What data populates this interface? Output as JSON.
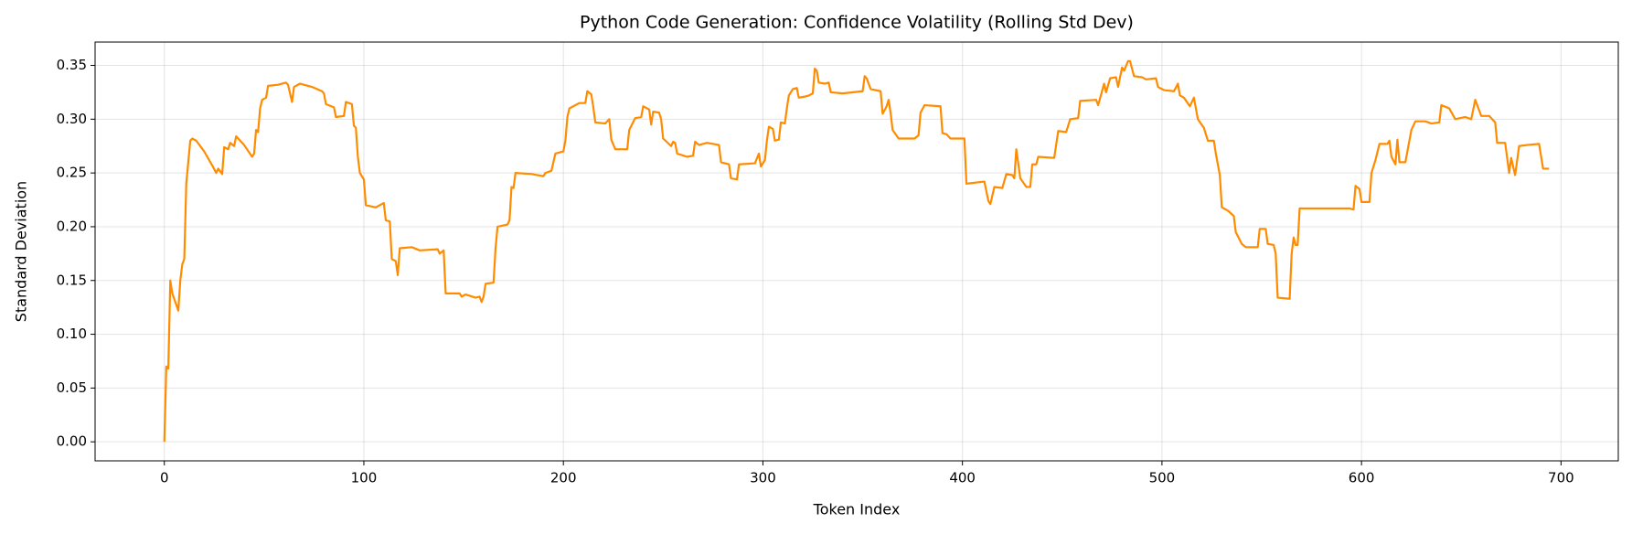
{
  "chart_data": {
    "type": "line",
    "title": "Python Code Generation: Confidence Volatility (Rolling Std Dev)",
    "x_label": "Token Index",
    "y_label": "Standard Deviation",
    "color": "#ff8c00",
    "grid": true,
    "xlim": [
      -34.7,
      728.7
    ],
    "ylim": [
      -0.0177,
      0.3717
    ],
    "xticks": [
      0,
      100,
      200,
      300,
      400,
      500,
      600,
      700
    ],
    "yticks": [
      {
        "value": 0,
        "label": "0.00"
      },
      0.05,
      {
        "value": 0.1,
        "label": "0.10"
      },
      0.15,
      {
        "value": 0.2,
        "label": "0.20"
      },
      0.25,
      {
        "value": 0.3,
        "label": "0.30"
      },
      0.35
    ],
    "x": [
      0,
      1,
      2,
      3,
      4,
      7,
      8,
      9,
      10,
      11,
      12,
      13,
      14,
      16,
      20,
      24,
      26,
      27,
      29,
      30,
      32,
      33,
      35,
      36,
      40,
      44,
      45,
      46,
      47,
      48,
      49,
      51,
      52,
      57,
      61,
      62,
      64,
      65,
      68,
      74,
      79,
      80,
      81,
      85,
      86,
      90,
      91,
      94,
      95,
      96,
      97,
      98,
      100,
      101,
      106,
      110,
      111,
      113,
      114,
      116,
      117,
      118,
      124,
      128,
      137,
      138,
      140,
      141,
      148,
      149,
      151,
      156,
      158,
      159,
      160,
      161,
      165,
      166,
      167,
      172,
      173,
      174,
      175,
      176,
      184,
      190,
      191,
      194,
      196,
      200,
      201,
      202,
      203,
      208,
      211,
      212,
      214,
      215,
      216,
      221,
      223,
      224,
      226,
      232,
      233,
      236,
      239,
      240,
      243,
      244,
      245,
      248,
      249,
      250,
      254,
      255,
      256,
      257,
      262,
      265,
      266,
      268,
      272,
      278,
      279,
      283,
      284,
      287,
      288,
      296,
      298,
      299,
      301,
      302,
      303,
      305,
      306,
      308,
      309,
      311,
      312,
      313,
      315,
      317,
      318,
      321,
      323,
      325,
      326,
      327,
      328,
      331,
      333,
      334,
      340,
      350,
      351,
      352,
      354,
      359,
      360,
      362,
      363,
      364,
      365,
      368,
      376,
      378,
      379,
      381,
      389,
      390,
      392,
      394,
      401,
      402,
      411,
      413,
      414,
      416,
      420,
      422,
      425,
      426,
      427,
      429,
      432,
      434,
      435,
      437,
      438,
      446,
      448,
      452,
      454,
      458,
      459,
      467,
      468,
      471,
      472,
      474,
      477,
      478,
      480,
      481,
      483,
      484,
      486,
      490,
      492,
      497,
      498,
      501,
      506,
      508,
      509,
      511,
      514,
      516,
      518,
      521,
      523,
      526,
      527,
      529,
      530,
      533,
      536,
      537,
      540,
      542,
      548,
      549,
      552,
      553,
      556,
      557,
      558,
      564,
      565,
      566,
      567,
      568,
      569,
      594,
      596,
      597,
      599,
      600,
      604,
      605,
      607,
      609,
      613,
      614,
      615,
      617,
      618,
      619,
      622,
      625,
      627,
      632,
      635,
      639,
      640,
      644,
      647,
      652,
      655,
      657,
      660,
      664,
      667,
      668,
      672,
      674,
      675,
      677,
      679,
      683,
      689,
      691,
      694
    ],
    "values": [
      0,
      0.07,
      0.068,
      0.15,
      0.138,
      0.122,
      0.15,
      0.165,
      0.17,
      0.24,
      0.26,
      0.28,
      0.282,
      0.28,
      0.27,
      0.257,
      0.25,
      0.254,
      0.249,
      0.274,
      0.272,
      0.278,
      0.275,
      0.284,
      0.276,
      0.265,
      0.268,
      0.29,
      0.288,
      0.31,
      0.318,
      0.32,
      0.331,
      0.332,
      0.334,
      0.332,
      0.316,
      0.33,
      0.333,
      0.33,
      0.326,
      0.324,
      0.314,
      0.311,
      0.302,
      0.303,
      0.316,
      0.314,
      0.294,
      0.292,
      0.265,
      0.25,
      0.244,
      0.22,
      0.218,
      0.222,
      0.206,
      0.205,
      0.17,
      0.168,
      0.155,
      0.18,
      0.181,
      0.178,
      0.179,
      0.175,
      0.178,
      0.138,
      0.138,
      0.135,
      0.137,
      0.134,
      0.135,
      0.13,
      0.135,
      0.147,
      0.148,
      0.18,
      0.2,
      0.202,
      0.206,
      0.237,
      0.236,
      0.25,
      0.249,
      0.247,
      0.25,
      0.252,
      0.268,
      0.27,
      0.28,
      0.302,
      0.31,
      0.315,
      0.315,
      0.326,
      0.323,
      0.311,
      0.297,
      0.296,
      0.3,
      0.281,
      0.272,
      0.272,
      0.29,
      0.301,
      0.302,
      0.312,
      0.309,
      0.295,
      0.307,
      0.306,
      0.3,
      0.282,
      0.275,
      0.279,
      0.278,
      0.268,
      0.265,
      0.266,
      0.279,
      0.276,
      0.278,
      0.276,
      0.26,
      0.258,
      0.245,
      0.244,
      0.258,
      0.259,
      0.268,
      0.256,
      0.262,
      0.28,
      0.293,
      0.291,
      0.28,
      0.281,
      0.297,
      0.296,
      0.31,
      0.322,
      0.328,
      0.329,
      0.32,
      0.321,
      0.322,
      0.324,
      0.347,
      0.345,
      0.334,
      0.333,
      0.334,
      0.325,
      0.324,
      0.326,
      0.34,
      0.338,
      0.328,
      0.326,
      0.305,
      0.312,
      0.318,
      0.306,
      0.29,
      0.282,
      0.282,
      0.285,
      0.306,
      0.313,
      0.312,
      0.287,
      0.286,
      0.282,
      0.282,
      0.24,
      0.242,
      0.224,
      0.221,
      0.237,
      0.236,
      0.249,
      0.248,
      0.245,
      0.272,
      0.245,
      0.237,
      0.237,
      0.258,
      0.258,
      0.265,
      0.264,
      0.289,
      0.288,
      0.3,
      0.301,
      0.317,
      0.318,
      0.313,
      0.333,
      0.325,
      0.338,
      0.339,
      0.33,
      0.348,
      0.345,
      0.354,
      0.354,
      0.34,
      0.339,
      0.337,
      0.338,
      0.33,
      0.327,
      0.326,
      0.333,
      0.322,
      0.32,
      0.312,
      0.32,
      0.3,
      0.292,
      0.28,
      0.28,
      0.268,
      0.248,
      0.218,
      0.215,
      0.21,
      0.195,
      0.184,
      0.181,
      0.181,
      0.198,
      0.198,
      0.184,
      0.183,
      0.175,
      0.134,
      0.133,
      0.175,
      0.19,
      0.183,
      0.183,
      0.217,
      0.217,
      0.216,
      0.238,
      0.235,
      0.223,
      0.223,
      0.25,
      0.262,
      0.277,
      0.277,
      0.28,
      0.265,
      0.258,
      0.281,
      0.26,
      0.26,
      0.29,
      0.298,
      0.298,
      0.296,
      0.297,
      0.313,
      0.31,
      0.3,
      0.302,
      0.3,
      0.318,
      0.303,
      0.303,
      0.297,
      0.278,
      0.278,
      0.25,
      0.264,
      0.248,
      0.275,
      0.276,
      0.277,
      0.254,
      0.254
    ]
  }
}
